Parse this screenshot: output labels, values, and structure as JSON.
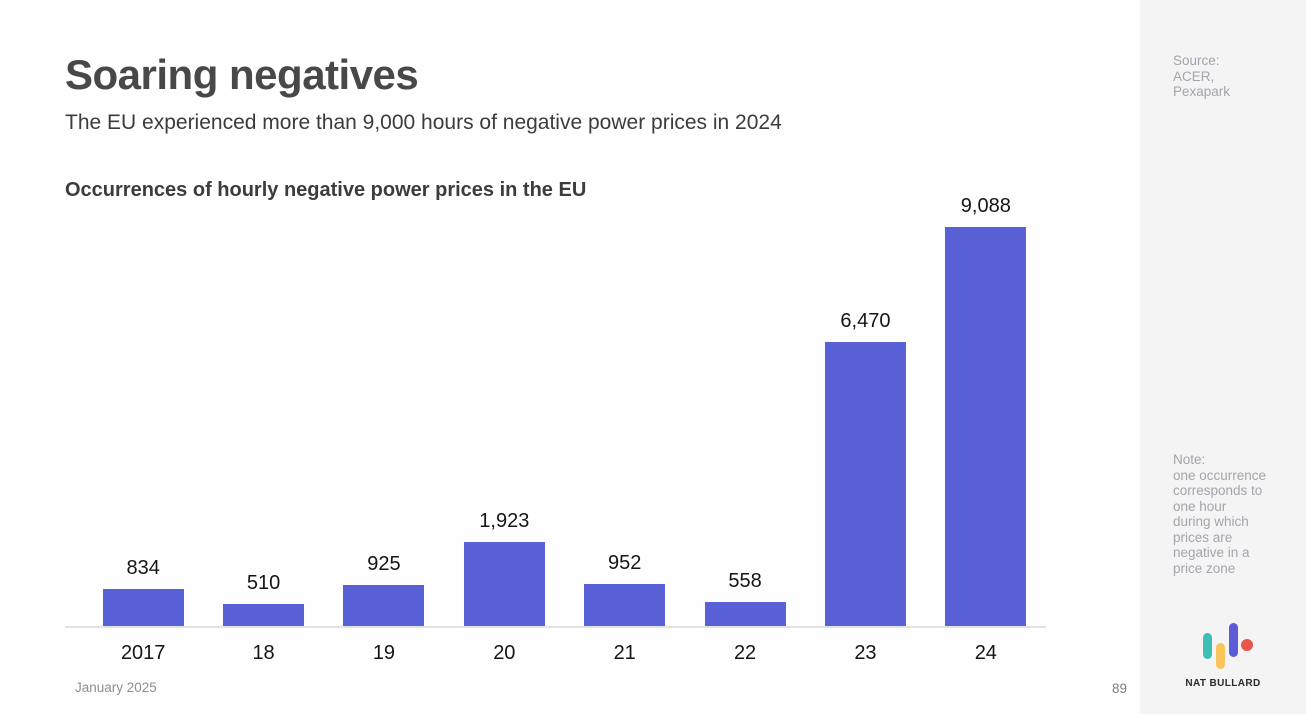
{
  "slide": {
    "title": "Soaring negatives",
    "subtitle": "The EU experienced more than 9,000 hours of negative power prices in 2024",
    "footer_date": "January 2025",
    "page_number": "89"
  },
  "sidebar": {
    "source": "Source:\nACER,\nPexapark",
    "note": "Note:\none occurrence\ncorresponds to\none hour\nduring which\nprices are\nnegative in a\nprice zone",
    "logo_text": "NAT BULLARD"
  },
  "chart_data": {
    "type": "bar",
    "title": "Occurrences of hourly negative power prices in the EU",
    "categories": [
      "2017",
      "18",
      "19",
      "20",
      "21",
      "22",
      "23",
      "24"
    ],
    "values": [
      834,
      510,
      925,
      1923,
      952,
      558,
      6470,
      9088
    ],
    "value_labels": [
      "834",
      "510",
      "925",
      "1,923",
      "952",
      "558",
      "6,470",
      "9,088"
    ],
    "xlabel": "",
    "ylabel": "",
    "ylim": [
      0,
      9088
    ],
    "grid": false,
    "legend": false,
    "bar_color": "#5a61d6",
    "axis_line_color": "#e2e2e2"
  },
  "colors": {
    "background": "#ffffff",
    "sidebar_background": "#f4f4f5",
    "title_text": "#484848",
    "body_text": "#3c3c3c",
    "label_text": "#151515",
    "muted_text": "#a2a5ab",
    "footer_text": "#8f8f8f",
    "logo_teal": "#3fbfb4",
    "logo_yellow": "#f9c45c",
    "logo_blue": "#5c5bd8",
    "logo_red": "#e8554d"
  }
}
